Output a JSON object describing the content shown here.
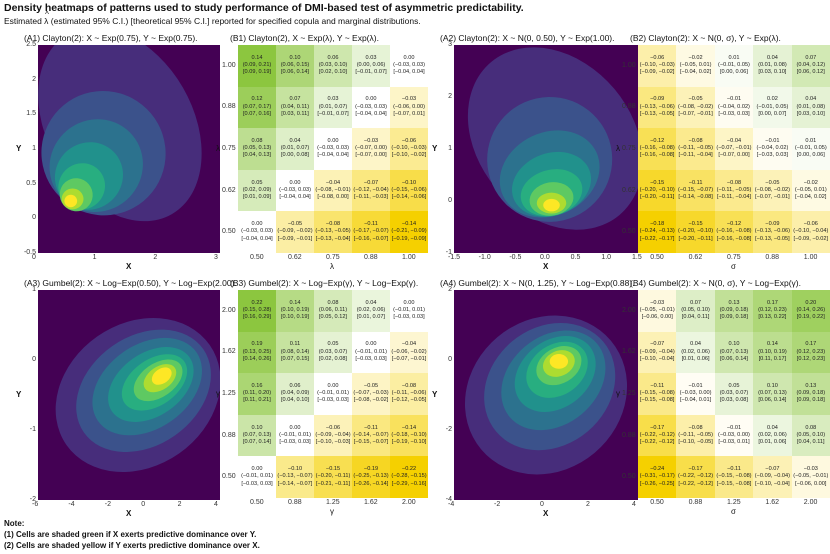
{
  "header": {
    "title": "Density heatmaps of patterns used to study performance of DMI-based test of asymmetric predictability.",
    "subtitle_pre": "Estimated",
    "subtitle_sym": "λ",
    "subtitle_post": "(estimated 95% C.I.) [theoretical 95% C.I.] reported for specified copula and marginal distributions."
  },
  "notes": {
    "heading": "Note:",
    "line1": "(1) Cells are shaded green if X exerts predictive dominance over Y.",
    "line2": "(2) Cells are shaded yellow if Y exerts predictive dominance over X."
  },
  "colors": {
    "viridis": [
      "#440154",
      "#472d7b",
      "#3b528b",
      "#2c728e",
      "#21918c",
      "#28ae80",
      "#5ec962",
      "#addc30",
      "#fde725"
    ],
    "green_strong": "#8cc63f",
    "yellow_strong": "#f5d000",
    "neutral": "#ffffff"
  },
  "chart_data": [
    {
      "id": "A1",
      "type": "heatmap",
      "title": "(A1) Clayton(2): X ~ Exp(0.75), Y ~ Exp(0.75).",
      "xlabel": "X",
      "ylabel": "Y",
      "xlim": [
        -0.5,
        3
      ],
      "ylim": [
        -0.5,
        2.5
      ],
      "xticks": [
        "0",
        "1",
        "2",
        "3"
      ],
      "yticks": [
        "-0.5",
        "0",
        "0.5",
        "1",
        "1.5",
        "2",
        "2.5"
      ],
      "mode": "X"
    },
    {
      "id": "A2",
      "type": "heatmap",
      "title": "(A2) Clayton(2): X ~ N(0, 0.50), Y ~ Exp(1.00).",
      "xlabel": "X",
      "ylabel": "Y",
      "xlim": [
        -1.5,
        1.5
      ],
      "ylim": [
        -1,
        3
      ],
      "xticks": [
        "-1.5",
        "-1.0",
        "-0.5",
        "0.0",
        "0.5",
        "1.0",
        "1.5"
      ],
      "yticks": [
        "-1",
        "0",
        "1",
        "2",
        "3"
      ],
      "mode": "ascend"
    },
    {
      "id": "A3",
      "type": "heatmap",
      "title": "(A3) Gumbel(2): X ~ Log−Exp(0.50), Y ~ Log−Exp(2.00).",
      "xlabel": "X",
      "ylabel": "Y",
      "xlim": [
        -6,
        4
      ],
      "ylim": [
        -2,
        1.5
      ],
      "xticks": [
        "-6",
        "-4",
        "-2",
        "0",
        "2",
        "4"
      ],
      "yticks": [
        "-2",
        "-1",
        "0",
        "1"
      ],
      "mode": "diag"
    },
    {
      "id": "A4",
      "type": "heatmap",
      "title": "(A4) Gumbel(2): X ~ N(0, 1.25), Y ~ Log−Exp(0.88).",
      "xlabel": "X",
      "ylabel": "Y",
      "xlim": [
        -4,
        4
      ],
      "ylim": [
        -5,
        2
      ],
      "xticks": [
        "-4",
        "-2",
        "0",
        "2",
        "4"
      ],
      "yticks": [
        "-4",
        "-2",
        "0",
        "2"
      ],
      "mode": "diag2"
    },
    {
      "id": "B1",
      "type": "table",
      "title": "(B1) Clayton(2), X ~ Exp(λ), Y ~ Exp(λ).",
      "xlabel": "λ",
      "ylabel": "λ",
      "col_labels": [
        "0.50",
        "0.62",
        "0.75",
        "0.88",
        "1.00"
      ],
      "row_labels": [
        "1.00",
        "0.88",
        "0.75",
        "0.62",
        "0.50"
      ],
      "values": [
        [
          0.14,
          0.1,
          0.06,
          0.03,
          0.0
        ],
        [
          0.12,
          0.07,
          0.03,
          0.0,
          -0.03
        ],
        [
          0.08,
          0.04,
          0.0,
          -0.03,
          -0.06
        ],
        [
          0.05,
          0.0,
          -0.04,
          -0.07,
          -0.1
        ],
        [
          0.0,
          -0.05,
          -0.08,
          -0.11,
          -0.14
        ]
      ],
      "cells": [
        [
          "0.14",
          "0.10",
          "0.06",
          "0.03",
          "0.00"
        ],
        [
          "0.12",
          "0.07",
          "0.03",
          "0.00",
          "−0.03"
        ],
        [
          "0.08",
          "0.04",
          "0.00",
          "−0.03",
          "−0.06"
        ],
        [
          "0.05",
          "0.00",
          "−0.04",
          "−0.07",
          "−0.10"
        ],
        [
          "0.00",
          "−0.05",
          "−0.08",
          "−0.11",
          "−0.14"
        ]
      ],
      "est_ci": [
        [
          "(0.09, 0.21)",
          "(0.06, 0.15)",
          "(0.03, 0.10)",
          "(0.00, 0.06)",
          "(−0.03, 0.03)"
        ],
        [
          "(0.07, 0.17)",
          "(0.04, 0.11)",
          "(0.01, 0.07)",
          "(−0.03, 0.03)",
          "(−0.06, 0.00)"
        ],
        [
          "(0.05, 0.13)",
          "(0.01, 0.07)",
          "(−0.03, 0.03)",
          "(−0.07, 0.00)",
          "(−0.10, −0.03)"
        ],
        [
          "(0.02, 0.09)",
          "(−0.03, 0.03)",
          "(−0.08, −0.01)",
          "(−0.12, −0.04)",
          "(−0.15, −0.06)"
        ],
        [
          "(−0.03, 0.03)",
          "(−0.09, −0.02)",
          "(−0.13, −0.05)",
          "(−0.17, −0.07)",
          "(−0.21, −0.09)"
        ]
      ],
      "theo_ci": [
        [
          "[0.09, 0.19]",
          "[0.06, 0.14]",
          "[0.02, 0.10]",
          "[−0.01, 0.07]",
          "[−0.04, 0.04]"
        ],
        [
          "[0.07, 0.16]",
          "[0.03, 0.11]",
          "[−0.01, 0.07]",
          "[−0.04, 0.04]",
          "[−0.07, 0.01]"
        ],
        [
          "[0.04, 0.13]",
          "[0.00, 0.08]",
          "[−0.04, 0.04]",
          "[−0.07, 0.00]",
          "[−0.10, −0.02]"
        ],
        [
          "[0.01, 0.09]",
          "[−0.04, 0.04]",
          "[−0.08, 0.00]",
          "[−0.11, −0.03]",
          "[−0.14, −0.06]"
        ],
        [
          "[−0.04, 0.04]",
          "[−0.09, −0.01]",
          "[−0.13, −0.04]",
          "[−0.16, −0.07]",
          "[−0.19, −0.09]"
        ]
      ]
    },
    {
      "id": "B2",
      "type": "table",
      "title": "(B2) Clayton(2): X ~ N(0, σ), Y ~ Exp(λ).",
      "xlabel": "σ",
      "ylabel": "λ",
      "col_labels": [
        "0.50",
        "0.62",
        "0.75",
        "0.88",
        "1.00"
      ],
      "row_labels": [
        "1.00",
        "0.88",
        "0.75",
        "0.62",
        "0.50"
      ],
      "values": [
        [
          -0.06,
          -0.02,
          0.01,
          0.04,
          0.07
        ],
        [
          -0.09,
          -0.05,
          -0.01,
          0.02,
          0.04
        ],
        [
          -0.12,
          -0.08,
          -0.04,
          -0.01,
          0.01
        ],
        [
          -0.15,
          -0.11,
          -0.08,
          -0.05,
          -0.02
        ],
        [
          -0.18,
          -0.15,
          -0.12,
          -0.09,
          -0.06
        ]
      ],
      "cells": [
        [
          "−0.06",
          "−0.02",
          "0.01",
          "0.04",
          "0.07"
        ],
        [
          "−0.09",
          "−0.05",
          "−0.01",
          "0.02",
          "0.04"
        ],
        [
          "−0.12",
          "−0.08",
          "−0.04",
          "−0.01",
          "0.01"
        ],
        [
          "−0.15",
          "−0.11",
          "−0.08",
          "−0.05",
          "−0.02"
        ],
        [
          "−0.18",
          "−0.15",
          "−0.12",
          "−0.09",
          "−0.06"
        ]
      ],
      "est_ci": [
        [
          "(−0.10, −0.03)",
          "(−0.05, 0.01)",
          "(−0.01, 0.05)",
          "(0.01, 0.08)",
          "(0.04, 0.12)"
        ],
        [
          "(−0.13, −0.06)",
          "(−0.08, −0.02)",
          "(−0.04, 0.02)",
          "(−0.01, 0.05)",
          "(0.01, 0.08)"
        ],
        [
          "(−0.16, −0.08)",
          "(−0.11, −0.05)",
          "(−0.07, −0.01)",
          "(−0.04, 0.02)",
          "(−0.01, 0.05)"
        ],
        [
          "(−0.20, −0.10)",
          "(−0.15, −0.07)",
          "(−0.11, −0.05)",
          "(−0.08, −0.02)",
          "(−0.05, 0.01)"
        ],
        [
          "(−0.24, −0.13)",
          "(−0.20, −0.10)",
          "(−0.16, −0.08)",
          "(−0.13, −0.06)",
          "(−0.10, −0.04)"
        ]
      ],
      "theo_ci": [
        [
          "[−0.09, −0.02]",
          "[−0.04, 0.02]",
          "[0.00, 0.06]",
          "[0.03, 0.10]",
          "[0.06, 0.12]"
        ],
        [
          "[−0.13, −0.05]",
          "[−0.07, −0.01]",
          "[−0.03, 0.03]",
          "[0.00, 0.07]",
          "[0.03, 0.10]"
        ],
        [
          "[−0.16, −0.08]",
          "[−0.11, −0.04]",
          "[−0.07, 0.00]",
          "[−0.03, 0.03]",
          "[0.00, 0.06]"
        ],
        [
          "[−0.20, −0.11]",
          "[−0.14, −0.08]",
          "[−0.11, −0.04]",
          "[−0.07, −0.01]",
          "[−0.04, 0.02]"
        ],
        [
          "[−0.22, −0.17]",
          "[−0.20, −0.11]",
          "[−0.16, −0.08]",
          "[−0.13, −0.05]",
          "[−0.09, −0.02]"
        ]
      ]
    },
    {
      "id": "B3",
      "type": "table",
      "title": "(B3) Gumbel(2): X ~ Log−Exp(γ), Y ~ Log−Exp(γ).",
      "xlabel": "γ",
      "ylabel": "γ",
      "col_labels": [
        "0.50",
        "0.88",
        "1.25",
        "1.62",
        "2.00"
      ],
      "row_labels": [
        "2.00",
        "1.62",
        "1.25",
        "0.88",
        "0.50"
      ],
      "values": [
        [
          0.22,
          0.14,
          0.08,
          0.04,
          0.0
        ],
        [
          0.19,
          0.11,
          0.05,
          0.0,
          -0.04
        ],
        [
          0.16,
          0.06,
          0.0,
          -0.05,
          -0.08
        ],
        [
          0.1,
          0.0,
          -0.06,
          -0.11,
          -0.14
        ],
        [
          0.0,
          -0.1,
          -0.15,
          -0.19,
          -0.22
        ]
      ],
      "cells": [
        [
          "0.22",
          "0.14",
          "0.08",
          "0.04",
          "0.00"
        ],
        [
          "0.19",
          "0.11",
          "0.05",
          "0.00",
          "−0.04"
        ],
        [
          "0.16",
          "0.06",
          "0.00",
          "−0.05",
          "−0.08"
        ],
        [
          "0.10",
          "0.00",
          "−0.06",
          "−0.11",
          "−0.14"
        ],
        [
          "0.00",
          "−0.10",
          "−0.15",
          "−0.19",
          "−0.22"
        ]
      ],
      "est_ci": [
        [
          "(0.15, 0.28)",
          "(0.10, 0.19)",
          "(0.06, 0.11)",
          "(0.02, 0.06)",
          "(−0.01, 0.01)"
        ],
        [
          "(0.13, 0.25)",
          "(0.08, 0.14)",
          "(0.03, 0.07)",
          "(−0.01, 0.01)",
          "(−0.06, −0.02)"
        ],
        [
          "(0.11, 0.20)",
          "(0.04, 0.09)",
          "(−0.01, 0.01)",
          "(−0.07, −0.03)",
          "(−0.11, −0.06)"
        ],
        [
          "(0.07, 0.13)",
          "(−0.01, 0.01)",
          "(−0.09, −0.04)",
          "(−0.14, −0.07)",
          "(−0.18, −0.10)"
        ],
        [
          "(−0.01, 0.01)",
          "(−0.13, −0.07)",
          "(−0.20, −0.11)",
          "(−0.25, −0.13)",
          "(−0.28, −0.15)"
        ]
      ],
      "theo_ci": [
        [
          "[0.16, 0.29]",
          "[0.10, 0.19]",
          "[0.05, 0.12]",
          "[0.01, 0.07]",
          "[−0.03, 0.03]"
        ],
        [
          "[0.14, 0.26]",
          "[0.07, 0.15]",
          "[0.02, 0.08]",
          "[−0.03, 0.03]",
          "[−0.07, −0.01]"
        ],
        [
          "[0.11, 0.21]",
          "[0.04, 0.10]",
          "[−0.03, 0.03]",
          "[−0.08, −0.02]",
          "[−0.12, −0.05]"
        ],
        [
          "[0.07, 0.14]",
          "[−0.03, 0.03]",
          "[−0.10, −0.03]",
          "[−0.15, −0.07]",
          "[−0.19, −0.10]"
        ],
        [
          "[−0.03, 0.03]",
          "[−0.14, −0.07]",
          "[−0.21, −0.11]",
          "[−0.26, −0.14]",
          "[−0.29, −0.16]"
        ]
      ]
    },
    {
      "id": "B4",
      "type": "table",
      "title": "(B4) Gumbel(2): X ~ N(0, σ), Y ~ Log−Exp(γ).",
      "xlabel": "σ",
      "ylabel": "γ",
      "col_labels": [
        "0.50",
        "0.88",
        "1.25",
        "1.62",
        "2.00"
      ],
      "row_labels": [
        "2.00",
        "1.62",
        "1.25",
        "0.88",
        "0.50"
      ],
      "values": [
        [
          -0.03,
          0.07,
          0.13,
          0.17,
          0.2
        ],
        [
          -0.07,
          0.04,
          0.1,
          0.14,
          0.17
        ],
        [
          -0.11,
          -0.01,
          0.05,
          0.1,
          0.13
        ],
        [
          -0.17,
          -0.08,
          -0.01,
          0.04,
          0.08
        ],
        [
          -0.24,
          -0.17,
          -0.11,
          -0.07,
          -0.03
        ]
      ],
      "cells": [
        [
          "−0.03",
          "0.07",
          "0.13",
          "0.17",
          "0.20"
        ],
        [
          "−0.07",
          "0.04",
          "0.10",
          "0.14",
          "0.17"
        ],
        [
          "−0.11",
          "−0.01",
          "0.05",
          "0.10",
          "0.13"
        ],
        [
          "−0.17",
          "−0.08",
          "−0.01",
          "0.04",
          "0.08"
        ],
        [
          "−0.24",
          "−0.17",
          "−0.11",
          "−0.07",
          "−0.03"
        ]
      ],
      "est_ci": [
        [
          "(−0.05, −0.01)",
          "(0.05, 0.10)",
          "(0.09, 0.18)",
          "(0.12, 0.23)",
          "(0.14, 0.26)"
        ],
        [
          "(−0.09, −0.04)",
          "(0.02, 0.06)",
          "(0.07, 0.13)",
          "(0.10, 0.19)",
          "(0.12, 0.23)"
        ],
        [
          "(−0.15, −0.08)",
          "(−0.03, 0.00)",
          "(0.03, 0.07)",
          "(0.07, 0.13)",
          "(0.09, 0.18)"
        ],
        [
          "(−0.22, −0.12)",
          "(−0.11, −0.05)",
          "(−0.03, 0.00)",
          "(0.02, 0.06)",
          "(0.05, 0.10)"
        ],
        [
          "(−0.31, −0.17)",
          "(−0.22, −0.12)",
          "(−0.15, −0.08)",
          "(−0.09, −0.04)",
          "(−0.05, −0.01)"
        ]
      ],
      "theo_ci": [
        [
          "[−0.06, 0.00]",
          "[0.04, 0.11]",
          "[0.09, 0.18]",
          "[0.13, 0.22]",
          "[0.19, 0.22]"
        ],
        [
          "[−0.10, −0.04]",
          "[0.01, 0.06]",
          "[0.06, 0.14]",
          "[0.11, 0.17]",
          "[0.12, 0.23]"
        ],
        [
          "[−0.15, −0.08]",
          "[−0.04, 0.01]",
          "[0.03, 0.08]",
          "[0.06, 0.14]",
          "[0.09, 0.18]"
        ],
        [
          "[−0.22, −0.12]",
          "[−0.10, −0.05]",
          "[−0.03, 0.01]",
          "[0.01, 0.06]",
          "[0.04, 0.11]"
        ],
        [
          "[−0.26, −0.25]",
          "[−0.22, −0.12]",
          "[−0.15, −0.08]",
          "[−0.10, −0.04]",
          "[−0.06, 0.00]"
        ]
      ]
    }
  ]
}
